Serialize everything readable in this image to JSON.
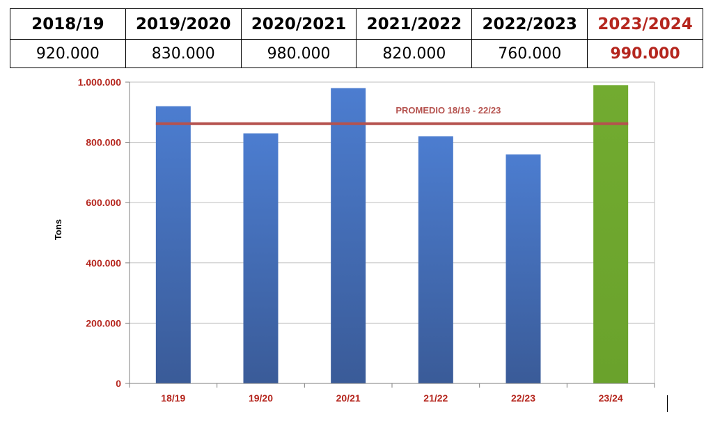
{
  "table": {
    "headers": [
      "2018/19",
      "2019/2020",
      "2020/2021",
      "2021/2022",
      "2022/2023",
      "2023/2024"
    ],
    "values": [
      "920.000",
      "830.000",
      "980.000",
      "820.000",
      "760.000",
      "990.000"
    ],
    "highlight_color": "#b5261e"
  },
  "chart_data": {
    "type": "bar",
    "categories": [
      "18/19",
      "19/20",
      "20/21",
      "21/22",
      "22/23",
      "23/24"
    ],
    "values": [
      920000,
      830000,
      980000,
      820000,
      760000,
      990000
    ],
    "ylabel": "Tons",
    "ylim": [
      0,
      1000000
    ],
    "yticks": [
      0,
      200000,
      400000,
      600000,
      800000,
      1000000
    ],
    "ytick_labels": [
      "0",
      "200.000",
      "400.000",
      "600.000",
      "800.000",
      "1.000.000"
    ],
    "grid": true,
    "bar_colors": [
      "#4a78c4",
      "#4a78c4",
      "#4a78c4",
      "#4a78c4",
      "#4a78c4",
      "#74ab34"
    ],
    "average_line": {
      "label": "PROMEDIO 18/19 - 22/23",
      "value": 862000,
      "color": "#b5524e"
    },
    "tick_color": "#b5261e"
  }
}
